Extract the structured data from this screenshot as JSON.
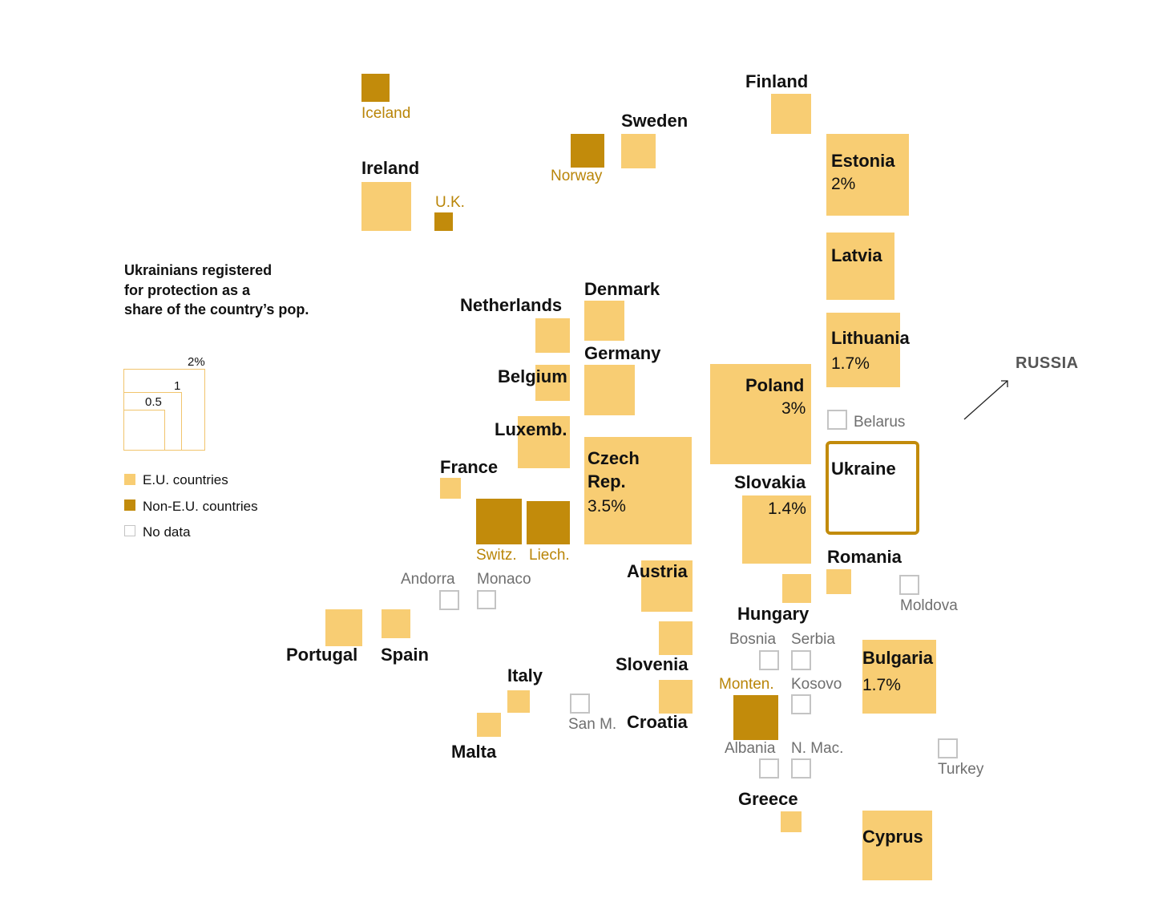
{
  "legend": {
    "title_lines": [
      "Ukrainians registered",
      "for protection as a",
      "share of the country’s pop."
    ],
    "scale_labels": [
      "2%",
      "1",
      "0.5"
    ],
    "key": [
      {
        "label": "E.U. countries",
        "type": "eu"
      },
      {
        "label": "Non-E.U. countries",
        "type": "noneu"
      },
      {
        "label": "No data",
        "type": "nodata"
      }
    ]
  },
  "russia_label": "RUSSIA",
  "colors": {
    "eu": "#f8cd73",
    "noneu": "#c28b0b",
    "nodata_border": "#c4c4c4",
    "ukraine_border": "#c28b0b"
  },
  "countries": [
    {
      "id": "iceland",
      "name": "Iceland",
      "type": "noneu"
    },
    {
      "id": "finland",
      "name": "Finland",
      "type": "eu"
    },
    {
      "id": "sweden",
      "name": "Sweden",
      "type": "eu"
    },
    {
      "id": "norway",
      "name": "Norway",
      "type": "noneu"
    },
    {
      "id": "estonia",
      "name": "Estonia",
      "type": "eu",
      "pct": "2%"
    },
    {
      "id": "ireland",
      "name": "Ireland",
      "type": "eu"
    },
    {
      "id": "uk",
      "name": "U.K.",
      "type": "noneu"
    },
    {
      "id": "latvia",
      "name": "Latvia",
      "type": "eu"
    },
    {
      "id": "netherlands",
      "name": "Netherlands",
      "type": "eu"
    },
    {
      "id": "denmark",
      "name": "Denmark",
      "type": "eu"
    },
    {
      "id": "lithuania",
      "name": "Lithuania",
      "type": "eu",
      "pct": "1.7%"
    },
    {
      "id": "belgium",
      "name": "Belgium",
      "type": "eu"
    },
    {
      "id": "germany",
      "name": "Germany",
      "type": "eu"
    },
    {
      "id": "poland",
      "name": "Poland",
      "type": "eu",
      "pct": "3%"
    },
    {
      "id": "belarus",
      "name": "Belarus",
      "type": "nodata"
    },
    {
      "id": "luxemb",
      "name": "Luxemb.",
      "type": "eu"
    },
    {
      "id": "czech",
      "name": "Czech Rep.",
      "name_lines": [
        "Czech",
        "Rep."
      ],
      "type": "eu",
      "pct": "3.5%"
    },
    {
      "id": "ukraine",
      "name": "Ukraine",
      "type": "ukraine"
    },
    {
      "id": "france",
      "name": "France",
      "type": "eu"
    },
    {
      "id": "slovakia",
      "name": "Slovakia",
      "type": "eu",
      "pct": "1.4%"
    },
    {
      "id": "switz",
      "name": "Switz.",
      "type": "noneu"
    },
    {
      "id": "liech",
      "name": "Liech.",
      "type": "noneu"
    },
    {
      "id": "romania",
      "name": "Romania",
      "type": "eu"
    },
    {
      "id": "andorra",
      "name": "Andorra",
      "type": "nodata"
    },
    {
      "id": "monaco",
      "name": "Monaco",
      "type": "nodata"
    },
    {
      "id": "austria",
      "name": "Austria",
      "type": "eu"
    },
    {
      "id": "moldova",
      "name": "Moldova",
      "type": "nodata"
    },
    {
      "id": "hungary",
      "name": "Hungary",
      "type": "eu"
    },
    {
      "id": "portugal",
      "name": "Portugal",
      "type": "eu"
    },
    {
      "id": "spain",
      "name": "Spain",
      "type": "eu"
    },
    {
      "id": "bosnia",
      "name": "Bosnia",
      "type": "nodata"
    },
    {
      "id": "serbia",
      "name": "Serbia",
      "type": "nodata"
    },
    {
      "id": "bulgaria",
      "name": "Bulgaria",
      "type": "eu",
      "pct": "1.7%"
    },
    {
      "id": "slovenia",
      "name": "Slovenia",
      "type": "eu"
    },
    {
      "id": "italy",
      "name": "Italy",
      "type": "eu"
    },
    {
      "id": "monten",
      "name": "Monten.",
      "type": "noneu"
    },
    {
      "id": "kosovo",
      "name": "Kosovo",
      "type": "nodata"
    },
    {
      "id": "sanm",
      "name": "San M.",
      "type": "nodata"
    },
    {
      "id": "croatia",
      "name": "Croatia",
      "type": "eu"
    },
    {
      "id": "malta",
      "name": "Malta",
      "type": "eu"
    },
    {
      "id": "albania",
      "name": "Albania",
      "type": "nodata"
    },
    {
      "id": "nmac",
      "name": "N. Mac.",
      "type": "nodata"
    },
    {
      "id": "turkey",
      "name": "Turkey",
      "type": "nodata"
    },
    {
      "id": "greece",
      "name": "Greece",
      "type": "eu"
    },
    {
      "id": "cyprus",
      "name": "Cyprus",
      "type": "eu"
    }
  ]
}
